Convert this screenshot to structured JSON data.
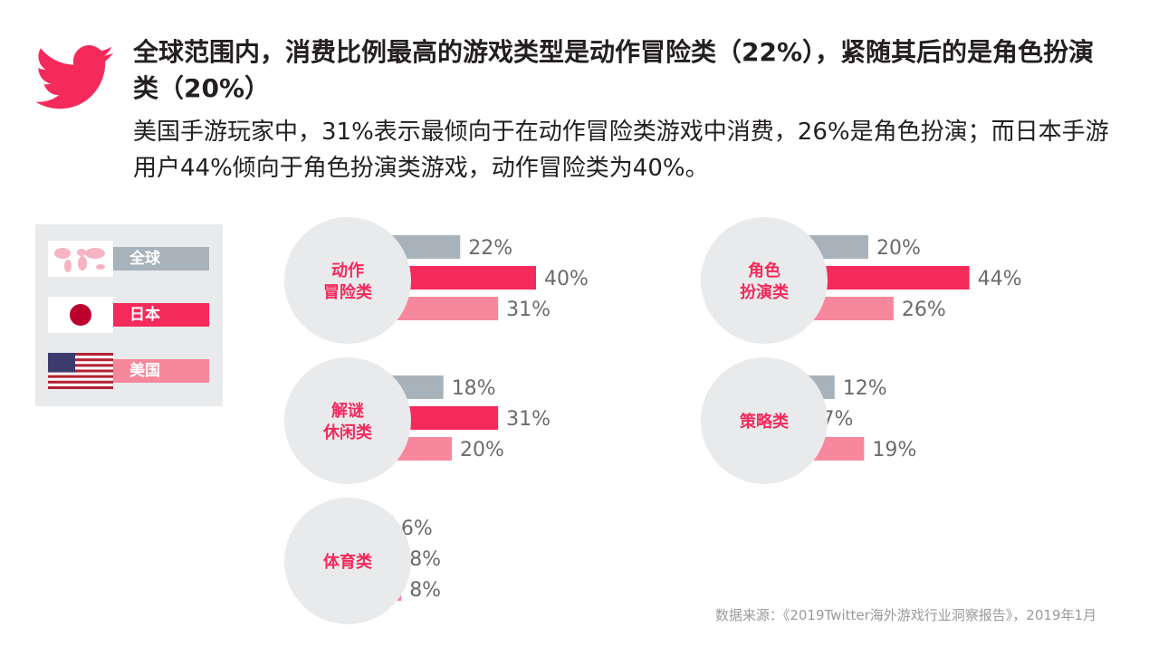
{
  "header": {
    "title": "全球范围内，消费比例最高的游戏类型是动作冒险类（22%），紧随其后的是角色扮演类（20%）",
    "subtitle": "美国手游玩家中，31%表示最倾向于在动作冒险类游戏中消费，26%是角色扮演；而日本手游用户44%倾向于角色扮演类游戏，动作冒险类为40%。"
  },
  "legend": {
    "items": [
      {
        "label": "全球",
        "icon": "world-map-icon",
        "color": "#a8b2ba"
      },
      {
        "label": "日本",
        "icon": "japan-flag-icon",
        "color": "#f42a5b"
      },
      {
        "label": "美国",
        "icon": "us-flag-icon",
        "color": "#f6879c"
      }
    ]
  },
  "colors": {
    "global": "#a8b2ba",
    "japan": "#f42a5b",
    "us": "#f6879c",
    "circle": "#e9eaec",
    "accent": "#f42a5b"
  },
  "chart_data": [
    {
      "type": "bar",
      "category": "动作冒险类",
      "category_lines": [
        "动作",
        "冒险类"
      ],
      "series": [
        {
          "name": "全球",
          "value": 22
        },
        {
          "name": "日本",
          "value": 40
        },
        {
          "name": "美国",
          "value": 31
        }
      ],
      "labels": [
        "22%",
        "40%",
        "31%"
      ]
    },
    {
      "type": "bar",
      "category": "角色扮演类",
      "category_lines": [
        "角色",
        "扮演类"
      ],
      "series": [
        {
          "name": "全球",
          "value": 20
        },
        {
          "name": "日本",
          "value": 44
        },
        {
          "name": "美国",
          "value": 26
        }
      ],
      "labels": [
        "20%",
        "44%",
        "26%"
      ]
    },
    {
      "type": "bar",
      "category": "解谜休闲类",
      "category_lines": [
        "解谜",
        "休闲类"
      ],
      "series": [
        {
          "name": "全球",
          "value": 18
        },
        {
          "name": "日本",
          "value": 31
        },
        {
          "name": "美国",
          "value": 20
        }
      ],
      "labels": [
        "18%",
        "31%",
        "20%"
      ]
    },
    {
      "type": "bar",
      "category": "策略类",
      "category_lines": [
        "策略类"
      ],
      "series": [
        {
          "name": "全球",
          "value": 12
        },
        {
          "name": "日本",
          "value": 7
        },
        {
          "name": "美国",
          "value": 19
        }
      ],
      "labels": [
        "12%",
        "7%",
        "19%"
      ]
    },
    {
      "type": "bar",
      "category": "体育类",
      "category_lines": [
        "体育类"
      ],
      "series": [
        {
          "name": "全球",
          "value": 6
        },
        {
          "name": "日本",
          "value": 8
        },
        {
          "name": "美国",
          "value": 8
        }
      ],
      "labels": [
        "6%",
        "8%",
        "8%"
      ]
    }
  ],
  "footer": {
    "source": "数据来源：《2019Twitter海外游戏行业洞察报告》，2019年1月"
  }
}
